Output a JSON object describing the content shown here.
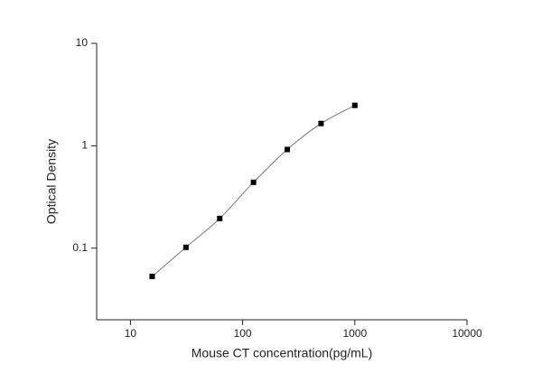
{
  "chart_data": {
    "type": "scatter",
    "x_label": "Mouse CT concentration(pg/mL)",
    "y_label": "Optical Density",
    "x_scale": "log",
    "y_scale": "log",
    "xlim": [
      5,
      10000
    ],
    "xticks": [
      10,
      100,
      1000,
      10000
    ],
    "ylim": [
      0.02,
      10
    ],
    "yticks": [
      0.1,
      1,
      10
    ],
    "fit_line": true,
    "series": [
      {
        "color": "#000000",
        "line_color": "#777777",
        "x": [
          15.625,
          31.25,
          62.5,
          125,
          250,
          500,
          1000
        ],
        "values": [
          0.053,
          0.102,
          0.195,
          0.44,
          0.92,
          1.65,
          2.48
        ]
      }
    ]
  }
}
